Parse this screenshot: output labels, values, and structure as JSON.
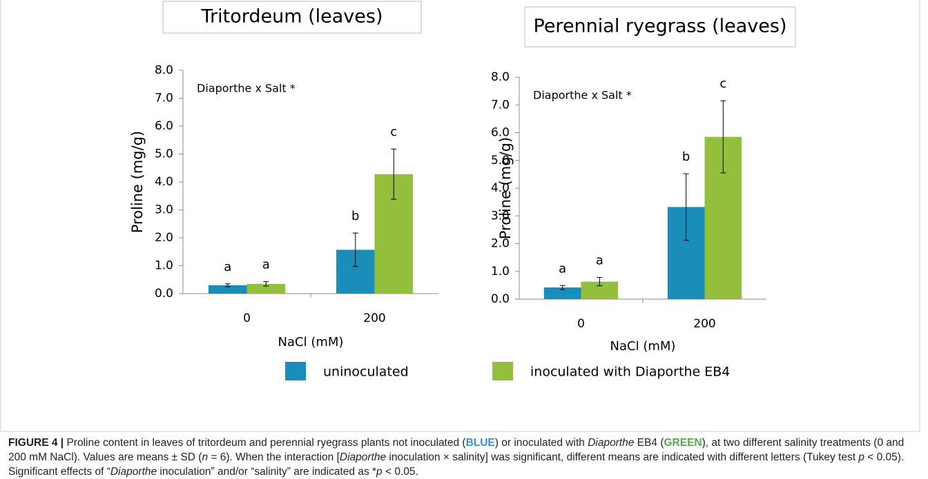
{
  "chart_data": [
    {
      "type": "bar",
      "title": "Tritordeum (leaves)",
      "annotation": "Diaporthe x Salt *",
      "x_label": "NaCl (mM)",
      "y_label": "Proline  (mg/g)",
      "categories": [
        "0",
        "200"
      ],
      "series": [
        {
          "name": "uninoculated",
          "color": "#1a8db8",
          "values": [
            0.3,
            1.57
          ],
          "errors": [
            0.05,
            0.6
          ],
          "letters": [
            "a",
            "b"
          ]
        },
        {
          "name": "inoculated with Diaporthe EB4",
          "color": "#93bf3d",
          "values": [
            0.35,
            4.28
          ],
          "errors": [
            0.08,
            0.9
          ],
          "letters": [
            "a",
            "c"
          ]
        }
      ],
      "ylim": [
        0,
        8
      ],
      "yticks": [
        {
          "value": 0,
          "label": "0.0"
        },
        {
          "value": 1,
          "label": "1.0"
        },
        {
          "value": 2,
          "label": "2.0"
        },
        {
          "value": 3,
          "label": "3.0"
        },
        {
          "value": 4,
          "label": "4.0"
        },
        {
          "value": 5,
          "label": "5.0"
        },
        {
          "value": 6,
          "label": "6.0"
        },
        {
          "value": 7,
          "label": "7.0"
        },
        {
          "value": 8,
          "label": "8.0"
        }
      ]
    },
    {
      "type": "bar",
      "title": "Perennial ryegrass (leaves)",
      "annotation": "Diaporthe x Salt *",
      "x_label": "NaCl (mM)",
      "y_label": "Proline  (mg/g)",
      "categories": [
        "0",
        "200"
      ],
      "series": [
        {
          "color": "#1a8db8",
          "values": [
            0.42,
            3.32
          ],
          "errors": [
            0.07,
            1.2
          ],
          "letters": [
            "a",
            "b"
          ]
        },
        {
          "color": "#93bf3d",
          "values": [
            0.63,
            5.85
          ],
          "errors": [
            0.15,
            1.3
          ],
          "letters": [
            "a",
            "c"
          ]
        }
      ],
      "ylim": [
        0,
        8
      ],
      "yticks": [
        {
          "value": 0,
          "label": "0.0"
        },
        {
          "value": 1,
          "label": "1.0"
        },
        {
          "value": 2,
          "label": "2.0"
        },
        {
          "value": 3,
          "label": "3.0"
        },
        {
          "value": 4,
          "label": "4.0"
        },
        {
          "value": 5,
          "label": "5.0"
        },
        {
          "value": 6,
          "label": "6.0"
        },
        {
          "value": 7,
          "label": "7.0"
        },
        {
          "value": 8,
          "label": "8.0"
        }
      ]
    }
  ],
  "caption": [
    {
      "text": "FIGURE 4 | ",
      "bold": true
    },
    {
      "text": "Proline content in leaves of tritordeum and perennial ryegrass plants not inoculated ("
    },
    {
      "text": "BLUE",
      "bold": true,
      "color": "#3a8fd0"
    },
    {
      "text": ") or inoculated with "
    },
    {
      "text": "Diaporthe",
      "italic": true
    },
    {
      "text": " EB4 ("
    },
    {
      "text": "GREEN",
      "bold": true,
      "color": "#4cae4c"
    },
    {
      "text": "), at two different salinity treatments (0 and 200 mM NaCl). Values are means ± SD ("
    },
    {
      "text": "n",
      "italic": true
    },
    {
      "text": " = 6). When the interaction ["
    },
    {
      "text": "Diaporthe",
      "italic": true
    },
    {
      "text": " inoculation × salinity] was significant, different means are indicated with different letters (Tukey test "
    },
    {
      "text": "p",
      "italic": true
    },
    {
      "text": " < 0.05). Significant effects of “"
    },
    {
      "text": "Diaporthe",
      "italic": true
    },
    {
      "text": " inoculation” and/or “salinity” are indicated as *"
    },
    {
      "text": "p",
      "italic": true
    },
    {
      "text": " < 0.05."
    }
  ]
}
